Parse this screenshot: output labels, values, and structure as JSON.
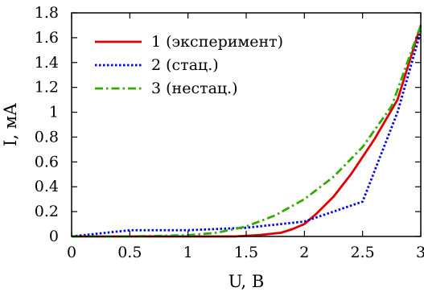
{
  "chart_data": {
    "type": "line",
    "title": "",
    "xlabel": "U, В",
    "ylabel": "I, мА",
    "xlim": [
      0,
      3
    ],
    "ylim": [
      0,
      1.8
    ],
    "xticks": [
      0,
      0.5,
      1,
      1.5,
      2,
      2.5,
      3
    ],
    "xtick_labels": [
      "0",
      "0.5",
      "1",
      "1.5",
      "2",
      "2.5",
      "3"
    ],
    "yticks": [
      0,
      0.2,
      0.4,
      0.6,
      0.8,
      1.0,
      1.2,
      1.4,
      1.6,
      1.8
    ],
    "ytick_labels": [
      "0",
      "0.2",
      "0.4",
      "0.6",
      "0.8",
      "1",
      "1.2",
      "1.4",
      "1.6",
      "1.8"
    ],
    "grid": false,
    "legend_position": "top-left",
    "series": [
      {
        "name": "1 (эксперимент)",
        "color": "#dd0000",
        "style": "solid",
        "x": [
          0,
          0.5,
          1.0,
          1.4,
          1.6,
          1.8,
          1.9,
          2.0,
          2.1,
          2.25,
          2.4,
          2.6,
          2.8,
          3.0
        ],
        "y": [
          0,
          0,
          0,
          0,
          0.01,
          0.03,
          0.06,
          0.1,
          0.18,
          0.32,
          0.5,
          0.78,
          1.1,
          1.7
        ]
      },
      {
        "name": "2 (стац.)",
        "color": "#0000ee",
        "style": "dotted",
        "x": [
          0,
          0.3,
          0.5,
          1.0,
          1.5,
          2.0,
          2.5,
          2.8,
          3.0
        ],
        "y": [
          0,
          0.03,
          0.05,
          0.05,
          0.07,
          0.12,
          0.28,
          1.0,
          1.65
        ]
      },
      {
        "name": "3 (нестац.)",
        "color": "#33aa00",
        "style": "dash-dot",
        "x": [
          0,
          0.5,
          1.0,
          1.25,
          1.5,
          1.75,
          2.0,
          2.25,
          2.5,
          2.75,
          3.0
        ],
        "y": [
          0,
          0,
          0.01,
          0.03,
          0.08,
          0.17,
          0.3,
          0.48,
          0.72,
          1.05,
          1.7
        ]
      }
    ]
  }
}
